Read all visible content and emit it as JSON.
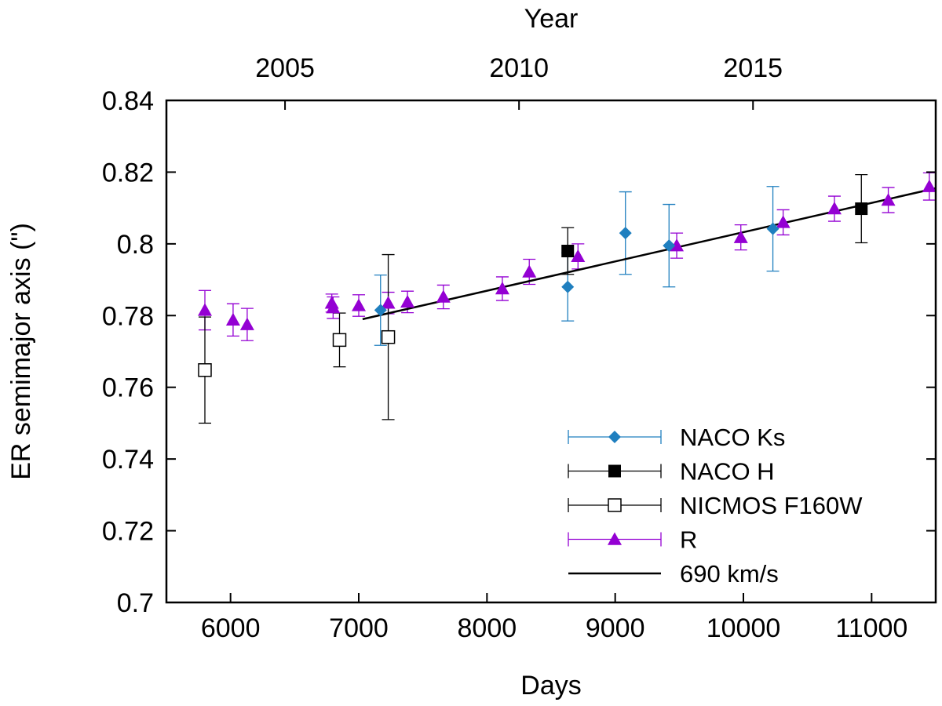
{
  "chart_data": {
    "type": "scatter",
    "title": "",
    "xlabel": "Days",
    "ylabel": "ER semimajor axis (\")",
    "x2label": "Year",
    "xlim": [
      5500,
      11500
    ],
    "ylim": [
      0.7,
      0.84
    ],
    "grid": false,
    "legend_position": "bottom-right",
    "xticks": [
      {
        "value": 6000,
        "label": "6000"
      },
      {
        "value": 7000,
        "label": "7000"
      },
      {
        "value": 8000,
        "label": "8000"
      },
      {
        "value": 9000,
        "label": "9000"
      },
      {
        "value": 10000,
        "label": "10000"
      },
      {
        "value": 11000,
        "label": "11000"
      }
    ],
    "yticks": [
      {
        "value": 0.7,
        "label": "0.7"
      },
      {
        "value": 0.72,
        "label": "0.72"
      },
      {
        "value": 0.74,
        "label": "0.74"
      },
      {
        "value": 0.76,
        "label": "0.76"
      },
      {
        "value": 0.78,
        "label": "0.78"
      },
      {
        "value": 0.8,
        "label": "0.8"
      },
      {
        "value": 0.82,
        "label": "0.82"
      },
      {
        "value": 0.84,
        "label": "0.84"
      }
    ],
    "x2ticks": [
      {
        "value": 6425,
        "label": "2005"
      },
      {
        "value": 8250,
        "label": "2010"
      },
      {
        "value": 10075,
        "label": "2015"
      }
    ],
    "series": [
      {
        "name": "NACO Ks",
        "color": "#1f7fbf",
        "marker": "diamond",
        "points": [
          {
            "x": 7170,
            "y": 0.7815,
            "err": 0.0098
          },
          {
            "x": 8630,
            "y": 0.788,
            "err": 0.0095
          },
          {
            "x": 9080,
            "y": 0.803,
            "err": 0.0115
          },
          {
            "x": 9420,
            "y": 0.7995,
            "err": 0.0115
          },
          {
            "x": 10230,
            "y": 0.8042,
            "err": 0.0118
          }
        ]
      },
      {
        "name": "NACO H",
        "color": "#000000",
        "marker": "square-filled",
        "points": [
          {
            "x": 8630,
            "y": 0.798,
            "err": 0.0065
          },
          {
            "x": 10920,
            "y": 0.8098,
            "err": 0.0095
          }
        ]
      },
      {
        "name": "NICMOS F160W",
        "color": "#000000",
        "marker": "square-open",
        "points": [
          {
            "x": 5800,
            "y": 0.7648,
            "err": 0.0148
          },
          {
            "x": 6850,
            "y": 0.7732,
            "err": 0.0075
          },
          {
            "x": 7230,
            "y": 0.774,
            "err": 0.023
          }
        ]
      },
      {
        "name": "R",
        "color": "#9400d3",
        "marker": "triangle",
        "points": [
          {
            "x": 5800,
            "y": 0.7815,
            "err": 0.0055
          },
          {
            "x": 6020,
            "y": 0.7788,
            "err": 0.0045
          },
          {
            "x": 6130,
            "y": 0.7775,
            "err": 0.0045
          },
          {
            "x": 6790,
            "y": 0.7835,
            "err": 0.0025
          },
          {
            "x": 6800,
            "y": 0.7822,
            "err": 0.003
          },
          {
            "x": 7000,
            "y": 0.7828,
            "err": 0.003
          },
          {
            "x": 7230,
            "y": 0.7835,
            "err": 0.003
          },
          {
            "x": 7380,
            "y": 0.7838,
            "err": 0.003
          },
          {
            "x": 7660,
            "y": 0.7852,
            "err": 0.0033
          },
          {
            "x": 8120,
            "y": 0.7875,
            "err": 0.0033
          },
          {
            "x": 8330,
            "y": 0.7922,
            "err": 0.0035
          },
          {
            "x": 8710,
            "y": 0.7965,
            "err": 0.0035
          },
          {
            "x": 9480,
            "y": 0.7995,
            "err": 0.0035
          },
          {
            "x": 9980,
            "y": 0.8018,
            "err": 0.0035
          },
          {
            "x": 10310,
            "y": 0.806,
            "err": 0.0035
          },
          {
            "x": 10710,
            "y": 0.8098,
            "err": 0.0035
          },
          {
            "x": 11130,
            "y": 0.8122,
            "err": 0.0035
          },
          {
            "x": 11450,
            "y": 0.816,
            "err": 0.0038
          }
        ]
      }
    ],
    "fit_line": {
      "name": "690 km/s",
      "color": "#000000",
      "points": [
        {
          "x": 7030,
          "y": 0.779
        },
        {
          "x": 11500,
          "y": 0.8155
        }
      ]
    }
  }
}
